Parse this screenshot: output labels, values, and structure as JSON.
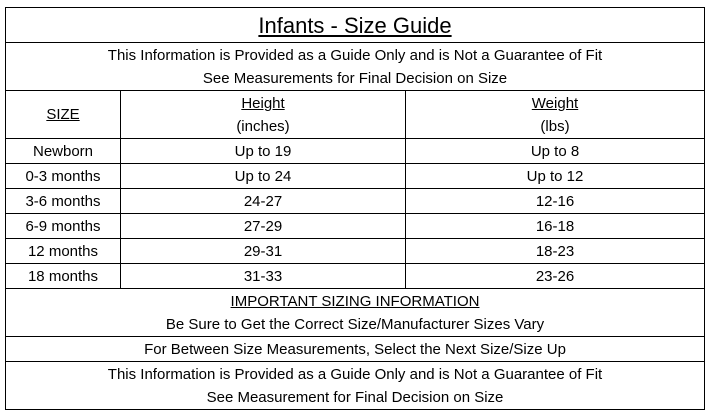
{
  "title": "Infants - Size Guide",
  "disclaimer_top": [
    "This Information is Provided as a Guide Only and is Not a Guarantee of Fit",
    "See Measurements for Final Decision on Size"
  ],
  "table": {
    "header": {
      "size": "SIZE",
      "height": "Height",
      "height_unit": "(inches)",
      "weight": "Weight",
      "weight_unit": "(lbs)"
    },
    "rows": [
      [
        "Newborn",
        "Up to 19",
        "Up to 8"
      ],
      [
        "0-3 months",
        "Up to 24",
        "Up to 12"
      ],
      [
        "3-6 months",
        "24-27",
        "12-16"
      ],
      [
        "6-9 months",
        "27-29",
        "16-18"
      ],
      [
        "12 months",
        "29-31",
        "18-23"
      ],
      [
        "18 months",
        "31-33",
        "23-26"
      ]
    ]
  },
  "important": {
    "heading": "IMPORTANT SIZING INFORMATION",
    "text": "Be Sure to Get the Correct Size/Manufacturer Sizes Vary"
  },
  "between_sizes": "For Between Size Measurements, Select the Next Size/Size Up",
  "disclaimer_bottom": [
    "This Information is Provided as a Guide Only and is Not a Guarantee of Fit",
    "See Measurement for Final Decision on Size"
  ]
}
